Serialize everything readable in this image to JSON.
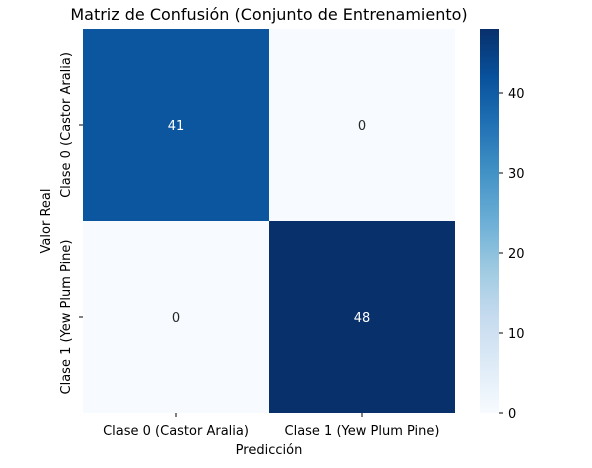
{
  "chart_data": {
    "type": "heatmap",
    "title": "Matriz de Confusión (Conjunto de Entrenamiento)",
    "xlabel": "Predicción",
    "ylabel": "Valor Real",
    "x_categories": [
      "Clase 0 (Castor Aralia)",
      "Clase 1 (Yew Plum Pine)"
    ],
    "y_categories": [
      "Clase 0 (Castor Aralia)",
      "Clase 1 (Yew Plum Pine)"
    ],
    "values": [
      [
        41,
        0
      ],
      [
        0,
        48
      ]
    ],
    "colormap": "Blues",
    "color_range": [
      0,
      48
    ],
    "colorbar_ticks": [
      0,
      10,
      20,
      30,
      40
    ],
    "colors": {
      "low": "#f7fbff",
      "high": "#08306b"
    }
  }
}
